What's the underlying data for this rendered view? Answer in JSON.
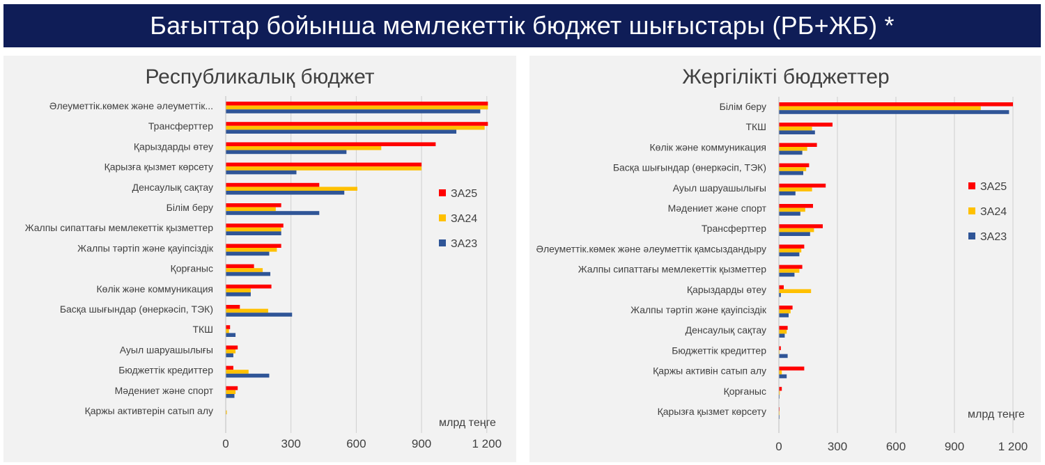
{
  "header": {
    "title": "Бағыттар бойынша мемлекеттік бюджет шығыстары (РБ+ЖБ) *"
  },
  "chart_data": [
    {
      "type": "bar",
      "orientation": "horizontal",
      "title": "Республикалық бюджет",
      "unit_label": "млрд теңге",
      "xlim": [
        0,
        1300
      ],
      "ticks": [
        0,
        300,
        600,
        900,
        1200
      ],
      "tick_labels": [
        "0",
        "300",
        "600",
        "900",
        "1 200"
      ],
      "grid": true,
      "legend_position": "right",
      "categories": [
        "Әлеуметтік.көмек және әлеуметтік...",
        "Трансферттер",
        "Қарыздарды өтеу",
        "Қарызға қызмет көрсету",
        "Денсаулық сақтау",
        "Білім беру",
        "Жалпы сипаттағы мемлекеттік қызметтер",
        "Жалпы тәртіп және қауіпсіздік",
        "Қорғаныс",
        "Көлік және коммуникация",
        "Басқа шығындар (өнеркәсіп, ТЭК)",
        "ТКШ",
        "Ауыл шаруашылығы",
        "Бюджеттік кредиттер",
        "Мәдениет және спорт",
        "Қаржы активтерін сатып алу"
      ],
      "series": [
        {
          "name": "ЗА25",
          "color": "#ff0000",
          "values": [
            1205,
            1205,
            965,
            900,
            430,
            255,
            265,
            255,
            130,
            210,
            65,
            20,
            55,
            35,
            55,
            0
          ]
        },
        {
          "name": "ЗА24",
          "color": "#ffc000",
          "values": [
            1205,
            1190,
            715,
            900,
            605,
            230,
            255,
            235,
            170,
            115,
            195,
            15,
            45,
            105,
            45,
            5
          ]
        },
        {
          "name": "ЗА23",
          "color": "#2f5597",
          "values": [
            1170,
            1060,
            555,
            325,
            545,
            430,
            255,
            200,
            205,
            115,
            305,
            45,
            35,
            200,
            40,
            0
          ]
        }
      ]
    },
    {
      "type": "bar",
      "orientation": "horizontal",
      "title": "Жергілікті бюджеттер",
      "unit_label": "млрд теңге",
      "xlim": [
        0,
        1300
      ],
      "ticks": [
        0,
        300,
        600,
        900,
        1200
      ],
      "tick_labels": [
        "0",
        "300",
        "600",
        "900",
        "1 200"
      ],
      "grid": true,
      "legend_position": "right",
      "categories": [
        "Білім беру",
        "ТКШ",
        "Көлік және коммуникация",
        "Басқа шығындар (өнеркәсіп, ТЭК)",
        "Ауыл шаруашылығы",
        "Мәдениет және спорт",
        "Трансферттер",
        "Әлеуметтік.көмек және әлеуметтік қамсыздандыру",
        "Жалпы сипаттағы мемлекеттік қызметтер",
        "Қарыздарды өтеу",
        "Жалпы тәртіп және қауіпсіздік",
        "Денсаулық сақтау",
        "Бюджеттік кредиттер",
        "Қаржы активін сатып алу",
        "Қорғаныс",
        "Қарызға қызмет көрсету"
      ],
      "series": [
        {
          "name": "ЗА25",
          "color": "#ff0000",
          "values": [
            1200,
            275,
            195,
            155,
            240,
            175,
            225,
            130,
            120,
            25,
            70,
            45,
            10,
            130,
            15,
            2
          ]
        },
        {
          "name": "ЗА24",
          "color": "#ffc000",
          "values": [
            1035,
            170,
            145,
            140,
            170,
            135,
            180,
            115,
            105,
            165,
            60,
            40,
            2,
            15,
            5,
            2
          ]
        },
        {
          "name": "ЗА23",
          "color": "#2f5597",
          "values": [
            1180,
            185,
            120,
            125,
            85,
            110,
            160,
            105,
            80,
            10,
            50,
            30,
            45,
            40,
            3,
            2
          ]
        }
      ]
    }
  ]
}
